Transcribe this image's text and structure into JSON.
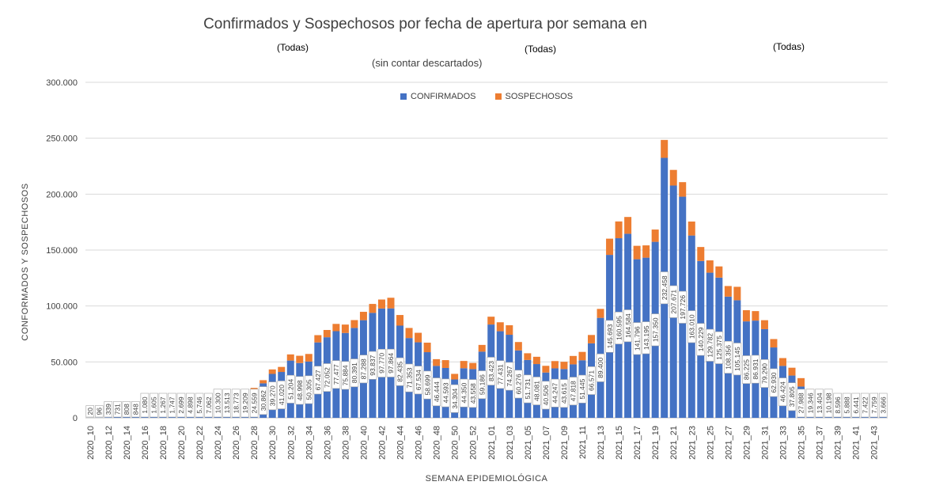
{
  "colors": {
    "confirmados": "#4472C4",
    "sospechosos": "#ED7D31",
    "grid": "#D9D9D9",
    "text": "#404040"
  },
  "chart_data": {
    "type": "bar",
    "stacked": true,
    "title": "Confirmados y Sospechosos por fecha de apertura por semana en",
    "subtitle": "(sin contar descartados)",
    "filters": [
      "(Todas)",
      "(Todas)",
      "(Todas)"
    ],
    "xlabel": "SEMANA EPIDEMIOLÓGICA",
    "ylabel": "CONFORMADOS Y SOSPECHOSOS",
    "ylim": [
      0,
      300000
    ],
    "yticks": [
      0,
      50000,
      100000,
      150000,
      200000,
      250000,
      300000
    ],
    "ytick_labels": [
      "0",
      "50.000",
      "100.000",
      "150.000",
      "200.000",
      "250.000",
      "300.000"
    ],
    "grid": true,
    "legend_position": "top-center",
    "categories": [
      "2020_10",
      "2020_11",
      "2020_12",
      "2020_13",
      "2020_14",
      "2020_15",
      "2020_16",
      "2020_17",
      "2020_18",
      "2020_19",
      "2020_20",
      "2020_21",
      "2020_22",
      "2020_23",
      "2020_24",
      "2020_25",
      "2020_26",
      "2020_27",
      "2020_28",
      "2020_29",
      "2020_30",
      "2020_31",
      "2020_32",
      "2020_33",
      "2020_34",
      "2020_35",
      "2020_36",
      "2020_37",
      "2020_38",
      "2020_39",
      "2020_40",
      "2020_41",
      "2020_42",
      "2020_43",
      "2020_44",
      "2020_45",
      "2020_46",
      "2020_47",
      "2020_48",
      "2020_49",
      "2020_50",
      "2020_51",
      "2020_52",
      "2020_53",
      "2021_01",
      "2021_02",
      "2021_03",
      "2021_04",
      "2021_05",
      "2021_06",
      "2021_07",
      "2021_08",
      "2021_09",
      "2021_10",
      "2021_11",
      "2021_12",
      "2021_13",
      "2021_14",
      "2021_15",
      "2021_16",
      "2021_17",
      "2021_18",
      "2021_19",
      "2021_20",
      "2021_21",
      "2021_22",
      "2021_23",
      "2021_24",
      "2021_25",
      "2021_26",
      "2021_27",
      "2021_28",
      "2021_29",
      "2021_30",
      "2021_31",
      "2021_32",
      "2021_33",
      "2021_34",
      "2021_35",
      "2021_36",
      "2021_37",
      "2021_38",
      "2021_39",
      "2021_40",
      "2021_41",
      "2021_42",
      "2021_43",
      "2021_44"
    ],
    "x_tick_labels": [
      "2020_10",
      "2020_12",
      "2020_14",
      "2020_16",
      "2020_18",
      "2020_20",
      "2020_22",
      "2020_24",
      "2020_26",
      "2020_28",
      "2020_30",
      "2020_32",
      "2020_34",
      "2020_36",
      "2020_38",
      "2020_40",
      "2020_42",
      "2020_44",
      "2020_46",
      "2020_48",
      "2020_50",
      "2020_52",
      "2021_01",
      "2021_03",
      "2021_05",
      "2021_07",
      "2021_09",
      "2021_11",
      "2021_13",
      "2021_15",
      "2021_17",
      "2021_19",
      "2021_21",
      "2021_23",
      "2021_25",
      "2021_27",
      "2021_29",
      "2021_31",
      "2021_33",
      "2021_35",
      "2021_37",
      "2021_39",
      "2021_41",
      "2021_43"
    ],
    "series": [
      {
        "name": "CONFIRMADOS",
        "color": "#4472C4",
        "values": [
          20,
          96,
          339,
          731,
          808,
          848,
          1080,
          1605,
          1267,
          1747,
          2699,
          4898,
          5746,
          7062,
          10300,
          13513,
          18773,
          19209,
          24559,
          30862,
          39270,
          41020,
          51204,
          48998,
          50305,
          67427,
          72052,
          77477,
          75884,
          80391,
          87288,
          93837,
          97770,
          97864,
          82435,
          71353,
          67534,
          58699,
          46444,
          44593,
          34304,
          44350,
          43558,
          59186,
          83423,
          77431,
          74267,
          60276,
          51731,
          48081,
          40506,
          44247,
          43615,
          47818,
          51445,
          66571,
          89400,
          145693,
          160595,
          164584,
          141796,
          143195,
          157350,
          232458,
          207671,
          197726,
          163010,
          140229,
          129782,
          125375,
          108356,
          105145,
          86225,
          86931,
          79290,
          62930,
          46424,
          37805,
          27988,
          19346,
          13404,
          10198,
          8596,
          5888,
          6441,
          7422,
          7759,
          3666
        ],
        "labels": [
          "20",
          "96",
          "339",
          "731",
          "808",
          "848",
          "1.080",
          "1.605",
          "1.267",
          "1.747",
          "2.699",
          "4.898",
          "5.746",
          "7.062",
          "10.300",
          "13.513",
          "18.773",
          "19.209",
          "24.559",
          "30.862",
          "39.270",
          "41.020",
          "51.204",
          "48.998",
          "50.305",
          "67.427",
          "72.052",
          "77.477",
          "75.884",
          "80.391",
          "87.288",
          "93.837",
          "97.770",
          "97.864",
          "82.435",
          "71.353",
          "67.534",
          "58.699",
          "46.444",
          "44.593",
          "34.304",
          "44.350",
          "43.558",
          "59.186",
          "83.423",
          "77.431",
          "74.267",
          "60.276",
          "51.731",
          "48.081",
          "40.506",
          "44.247",
          "43.615",
          "47.818",
          "51.445",
          "66.571",
          "89.400",
          "145.693",
          "160.595",
          "164.584",
          "141.796",
          "143.195",
          "157.350",
          "232.458",
          "207.671",
          "197.726",
          "163.010",
          "140.229",
          "129.782",
          "125.375",
          "108.356",
          "105.145",
          "86.225",
          "86.931",
          "79.290",
          "62.930",
          "46.424",
          "37.805",
          "27.988",
          "19.346",
          "13.404",
          "10.198",
          "8.596",
          "5.888",
          "6.441",
          "7.422",
          "7.759",
          "3.666"
        ]
      },
      {
        "name": "SOSPECHOSOS",
        "color": "#ED7D31",
        "values": [
          0,
          0,
          0,
          0,
          0,
          0,
          0,
          0,
          0,
          0,
          0,
          0,
          0,
          200,
          400,
          600,
          1000,
          1600,
          2200,
          2800,
          4000,
          4500,
          5500,
          6500,
          6800,
          6500,
          6500,
          6500,
          7500,
          7000,
          7500,
          8000,
          8000,
          9500,
          9500,
          9000,
          8500,
          8500,
          6000,
          7000,
          5000,
          6500,
          5500,
          6000,
          7000,
          8000,
          8500,
          7500,
          6000,
          6500,
          6000,
          6500,
          6500,
          7500,
          7500,
          7500,
          8000,
          14500,
          15000,
          15000,
          12000,
          11000,
          11000,
          16000,
          14000,
          13000,
          12500,
          12500,
          11000,
          10000,
          9500,
          12000,
          10000,
          8500,
          8000,
          7500,
          7000,
          7000,
          7500,
          6500,
          4000,
          3500,
          2500,
          2000,
          2000,
          3500,
          5000,
          2000
        ]
      }
    ]
  }
}
